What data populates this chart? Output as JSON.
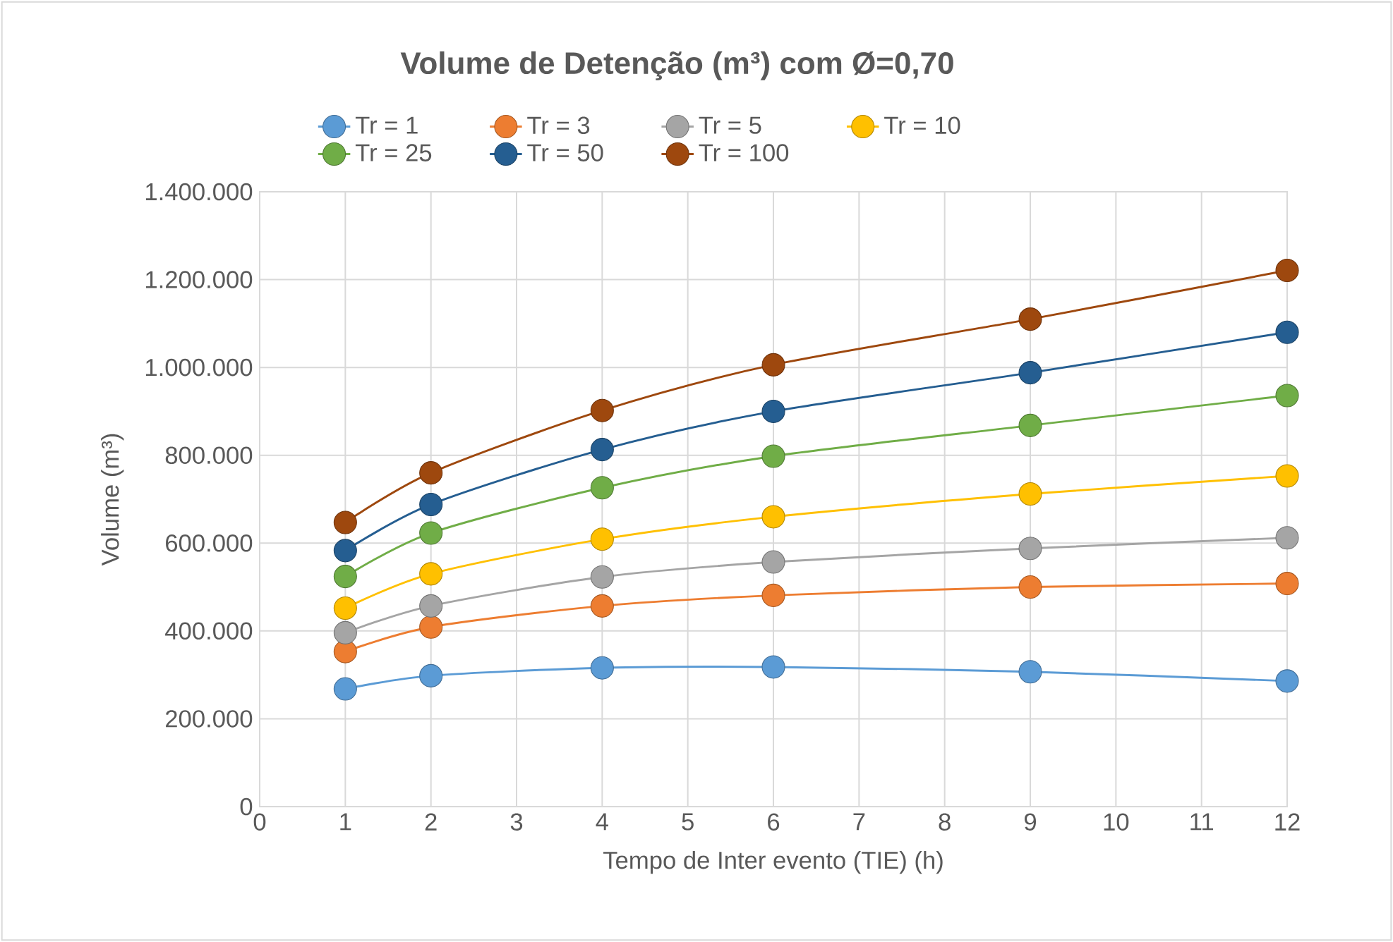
{
  "chart_data": {
    "type": "line",
    "title": "Volume de Detenção (m³) com Ø=0,70",
    "xlabel": "Tempo de Inter evento (TIE) (h)",
    "ylabel": "Volume (m³)",
    "x": [
      1,
      2,
      4,
      6,
      9,
      12
    ],
    "series": [
      {
        "name": "Tr = 1",
        "color": "#5b9bd5",
        "values": [
          268000,
          298000,
          316000,
          318000,
          307000,
          286000
        ]
      },
      {
        "name": "Tr = 3",
        "color": "#ed7d31",
        "values": [
          353000,
          409000,
          457000,
          481000,
          500000,
          508000
        ]
      },
      {
        "name": "Tr = 5",
        "color": "#a5a5a5",
        "values": [
          396000,
          457000,
          523000,
          557000,
          588000,
          612000
        ]
      },
      {
        "name": "Tr = 10",
        "color": "#ffc000",
        "values": [
          452000,
          530000,
          609000,
          660000,
          712000,
          753000
        ]
      },
      {
        "name": "Tr = 25",
        "color": "#70ad47",
        "values": [
          524000,
          623000,
          726000,
          798000,
          868000,
          936000
        ]
      },
      {
        "name": "Tr = 50",
        "color": "#255e91",
        "values": [
          583000,
          688000,
          813000,
          900000,
          988000,
          1080000
        ]
      },
      {
        "name": "Tr = 100",
        "color": "#9e480e",
        "values": [
          647000,
          760000,
          902000,
          1006000,
          1110000,
          1221000
        ]
      }
    ],
    "xlim": [
      0,
      12
    ],
    "xticks": [
      0,
      1,
      2,
      3,
      4,
      5,
      6,
      7,
      8,
      9,
      10,
      11,
      12
    ],
    "ylim": [
      0,
      1400000
    ],
    "yticks": [
      0,
      {
        "value": 200000,
        "label": "200.000"
      },
      {
        "value": 400000,
        "label": "400.000"
      },
      {
        "value": 600000,
        "label": "600.000"
      },
      {
        "value": 800000,
        "label": "800.000"
      },
      {
        "value": 1000000,
        "label": "1.000.000"
      },
      {
        "value": 1200000,
        "label": "1.200.000"
      },
      {
        "value": 1400000,
        "label": "1.400.000"
      }
    ],
    "grid": true,
    "legend": "top",
    "marker": "circle",
    "line_style": "solid"
  }
}
